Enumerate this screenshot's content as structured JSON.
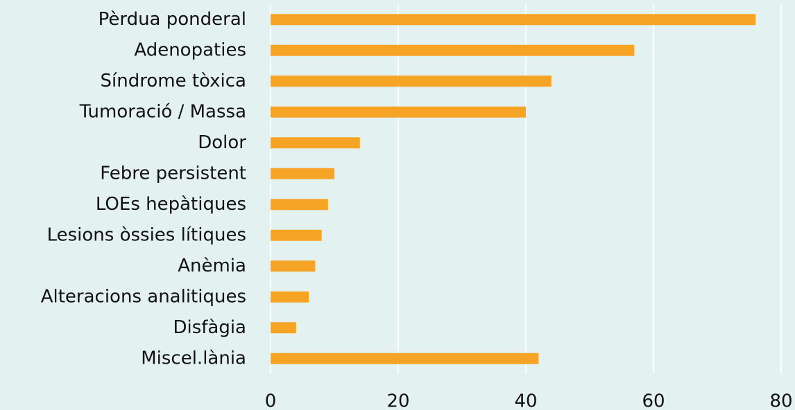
{
  "chart_data": {
    "type": "barh",
    "categories": [
      "Pèrdua ponderal",
      "Adenopaties",
      "Síndrome tòxica",
      "Tumoració / Massa",
      "Dolor",
      "Febre persistent",
      "LOEs hepàtiques",
      "Lesions òssies lítiques",
      "Anèmia",
      "Alteracions analitiques",
      "Disfàgia",
      "Miscel.lània"
    ],
    "values": [
      76,
      57,
      44,
      40,
      14,
      10,
      9,
      8,
      7,
      6,
      4,
      42
    ],
    "color": "#f5a425",
    "xlim": [
      0,
      80
    ],
    "xticks": [
      0,
      20,
      40,
      60,
      80
    ],
    "grid": true
  }
}
